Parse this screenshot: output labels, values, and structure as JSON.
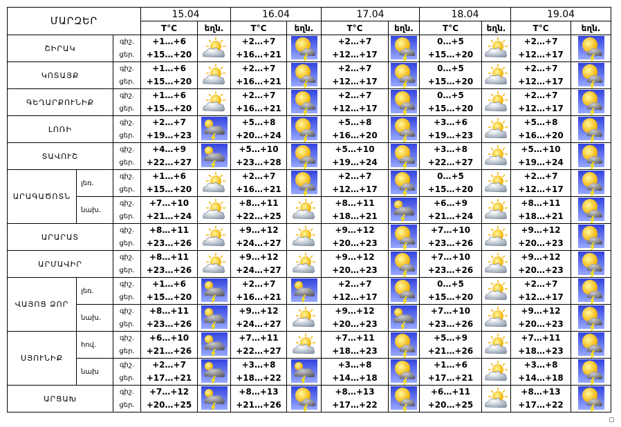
{
  "table": {
    "header": {
      "title": "ՄԱՐԶԵՐ",
      "dates": [
        "15.04",
        "16.04",
        "17.04",
        "18.04",
        "19.04"
      ],
      "temp_label": "T°C",
      "weather_label": "եղն.",
      "night_label": "գիշ.",
      "day_label": "ցեր."
    },
    "rows": [
      {
        "region": "ՇԻՐԱԿ",
        "parts": [
          {
            "days": [
              [
                "+1…+6",
                "+15…+20"
              ],
              [
                "+2…+7",
                "+16…+21"
              ],
              [
                "+2…+7",
                "+12…+17"
              ],
              [
                "0…+5",
                "+15…+20"
              ],
              [
                "+2…+7",
                "+12…+17"
              ]
            ]
          }
        ]
      },
      {
        "region": "ԿՈՏԱՅՔ",
        "parts": [
          {
            "days": [
              [
                "+1…+6",
                "+15…+20"
              ],
              [
                "+2…+7",
                "+16…+21"
              ],
              [
                "+2…+7",
                "+12…+17"
              ],
              [
                "0…+5",
                "+15…+20"
              ],
              [
                "+2…+7",
                "+12…+17"
              ]
            ]
          }
        ]
      },
      {
        "region": "ԳԵՂԱՐՔՈՒՆԻՔ",
        "parts": [
          {
            "days": [
              [
                "+1…+6",
                "+15…+20"
              ],
              [
                "+2…+7",
                "+16…+21"
              ],
              [
                "+2…+7",
                "+12…+17"
              ],
              [
                "0…+5",
                "+15…+20"
              ],
              [
                "+2…+7",
                "+12…+17"
              ]
            ]
          }
        ]
      },
      {
        "region": "ԼՈՌԻ",
        "parts": [
          {
            "days": [
              [
                "+2…+7",
                "+19…+23"
              ],
              [
                "+5…+8",
                "+20…+24"
              ],
              [
                "+5…+8",
                "+16…+20"
              ],
              [
                "+3…+6",
                "+19…+23"
              ],
              [
                "+5…+8",
                "+16…+20"
              ]
            ]
          }
        ]
      },
      {
        "region": "ՏԱՎՈՒՇ",
        "parts": [
          {
            "days": [
              [
                "+4…+9",
                "+22…+27"
              ],
              [
                "+5…+10",
                "+23…+28"
              ],
              [
                "+5…+10",
                "+19…+24"
              ],
              [
                "+3…+8",
                "+22…+27"
              ],
              [
                "+5…+10",
                "+19…+24"
              ]
            ]
          }
        ]
      },
      {
        "region": "ԱՐԱԳԱԾՈՏՆ",
        "parts": [
          {
            "sub": "լեռ.",
            "days": [
              [
                "+1…+6",
                "+15…+20"
              ],
              [
                "+2…+7",
                "+16…+21"
              ],
              [
                "+2…+7",
                "+12…+17"
              ],
              [
                "0…+5",
                "+15…+20"
              ],
              [
                "+2…+7",
                "+12…+17"
              ]
            ]
          },
          {
            "sub": "նախ.",
            "days": [
              [
                "+7…+10",
                "+21…+24"
              ],
              [
                "+8…+11",
                "+22…+25"
              ],
              [
                "+8…+11",
                "+18…+21"
              ],
              [
                "+6…+9",
                "+21…+24"
              ],
              [
                "+8…+11",
                "+18…+21"
              ]
            ]
          }
        ]
      },
      {
        "region": "ԱՐԱՐԱՏ",
        "parts": [
          {
            "days": [
              [
                "+8…+11",
                "+23…+26"
              ],
              [
                "+9…+12",
                "+24…+27"
              ],
              [
                "+9…+12",
                "+20…+23"
              ],
              [
                "+7…+10",
                "+23…+26"
              ],
              [
                "+9…+12",
                "+20…+23"
              ]
            ]
          }
        ]
      },
      {
        "region": "ԱՐՄԱՎԻՐ",
        "parts": [
          {
            "days": [
              [
                "+8…+11",
                "+23…+26"
              ],
              [
                "+9…+12",
                "+24…+27"
              ],
              [
                "+9…+12",
                "+20…+23"
              ],
              [
                "+7…+10",
                "+23…+26"
              ],
              [
                "+9…+12",
                "+20…+23"
              ]
            ]
          }
        ]
      },
      {
        "region": "ՎԱՅՈՑ ՁՈՐ",
        "parts": [
          {
            "sub": "լեռ.",
            "days": [
              [
                "+1…+6",
                "+15…+20"
              ],
              [
                "+2…+7",
                "+16…+21"
              ],
              [
                "+2…+7",
                "+12…+17"
              ],
              [
                "0…+5",
                "+15…+20"
              ],
              [
                "+2…+7",
                "+12…+17"
              ]
            ]
          },
          {
            "sub": "նախ.",
            "days": [
              [
                "+8…+11",
                "+23…+26"
              ],
              [
                "+9…+12",
                "+24…+27"
              ],
              [
                "+9…+12",
                "+20…+23"
              ],
              [
                "+7…+10",
                "+23…+26"
              ],
              [
                "+9…+12",
                "+20…+23"
              ]
            ]
          }
        ]
      },
      {
        "region": "ՍՅՈՒՆԻՔ",
        "parts": [
          {
            "sub": "հով.",
            "days": [
              [
                "+6…+10",
                "+21…+26"
              ],
              [
                "+7…+11",
                "+22…+27"
              ],
              [
                "+7…+11",
                "+18…+23"
              ],
              [
                "+5…+9",
                "+21…+26"
              ],
              [
                "+7…+11",
                "+18…+23"
              ]
            ]
          },
          {
            "sub": "նախ",
            "days": [
              [
                "+2…+7",
                "+17…+21"
              ],
              [
                "+3…+8",
                "+18…+22"
              ],
              [
                "+3…+8",
                "+14…+18"
              ],
              [
                "+1…+6",
                "+17…+21"
              ],
              [
                "+3…+8",
                "+14…+18"
              ]
            ]
          }
        ]
      },
      {
        "region": "ԱՐՑԱԽ",
        "parts": [
          {
            "days": [
              [
                "+7…+12",
                "+20…+25"
              ],
              [
                "+8…+13",
                "+21…+26"
              ],
              [
                "+8…+13",
                "+17…+22"
              ],
              [
                "+6…+11",
                "+20…+25"
              ],
              [
                "+8…+13",
                "+17…+22"
              ]
            ]
          }
        ]
      }
    ]
  }
}
